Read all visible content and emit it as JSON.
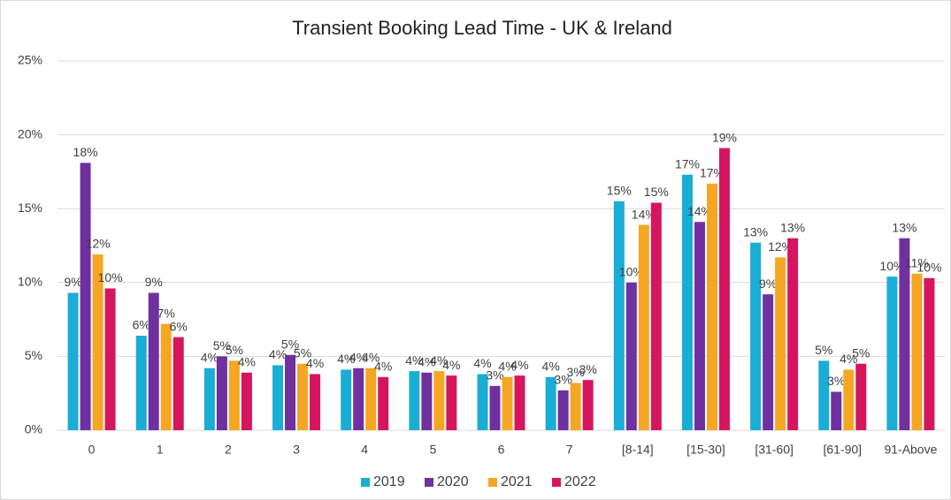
{
  "chart_data": {
    "type": "bar",
    "title": "Transient Booking Lead Time - UK & Ireland",
    "categories": [
      "0",
      "1",
      "2",
      "3",
      "4",
      "5",
      "6",
      "7",
      "[8-14]",
      "[15-30]",
      "[31-60]",
      "[61-90]",
      "91-Above"
    ],
    "series": [
      {
        "name": "2019",
        "color": "#1aadd6",
        "values": [
          9.3,
          6.4,
          4.2,
          4.4,
          4.1,
          4.0,
          3.8,
          3.6,
          15.5,
          17.3,
          12.7,
          4.7,
          10.4
        ],
        "value_labels": [
          "9%",
          "6%",
          "4%",
          "4%",
          "4%",
          "4%",
          "4%",
          "4%",
          "15%",
          "17%",
          "13%",
          "5%",
          "10%"
        ]
      },
      {
        "name": "2020",
        "color": "#7030a0",
        "values": [
          18.1,
          9.3,
          5.0,
          5.1,
          4.2,
          3.9,
          3.0,
          2.7,
          10.0,
          14.1,
          9.2,
          2.6,
          13.0
        ],
        "value_labels": [
          "18%",
          "9%",
          "5%",
          "5%",
          "4%",
          "4%",
          "3%",
          "3%",
          "10%",
          "14%",
          "9%",
          "3%",
          "13%"
        ]
      },
      {
        "name": "2021",
        "color": "#f5a623",
        "values": [
          11.9,
          7.2,
          4.7,
          4.5,
          4.2,
          4.0,
          3.6,
          3.2,
          13.9,
          16.7,
          11.7,
          4.1,
          10.6
        ],
        "value_labels": [
          "12%",
          "7%",
          "5%",
          "5%",
          "4%",
          "4%",
          "4%",
          "3%",
          "14%",
          "17%",
          "12%",
          "4%",
          "11%"
        ]
      },
      {
        "name": "2022",
        "color": "#d6155f",
        "values": [
          9.6,
          6.3,
          3.9,
          3.8,
          3.6,
          3.7,
          3.7,
          3.4,
          15.4,
          19.1,
          13.0,
          4.5,
          10.3
        ],
        "value_labels": [
          "10%",
          "6%",
          "4%",
          "4%",
          "4%",
          "4%",
          "4%",
          "3%",
          "15%",
          "19%",
          "13%",
          "5%",
          "10%"
        ]
      }
    ],
    "ylim": [
      0,
      25
    ],
    "yticks": [
      {
        "value": 0,
        "label": "0%"
      },
      {
        "value": 5,
        "label": "5%"
      },
      {
        "value": 10,
        "label": "10%"
      },
      {
        "value": 15,
        "label": "15%"
      },
      {
        "value": 20,
        "label": "20%"
      },
      {
        "value": 25,
        "label": "25%"
      }
    ],
    "grid": true,
    "legend": "bottom"
  }
}
